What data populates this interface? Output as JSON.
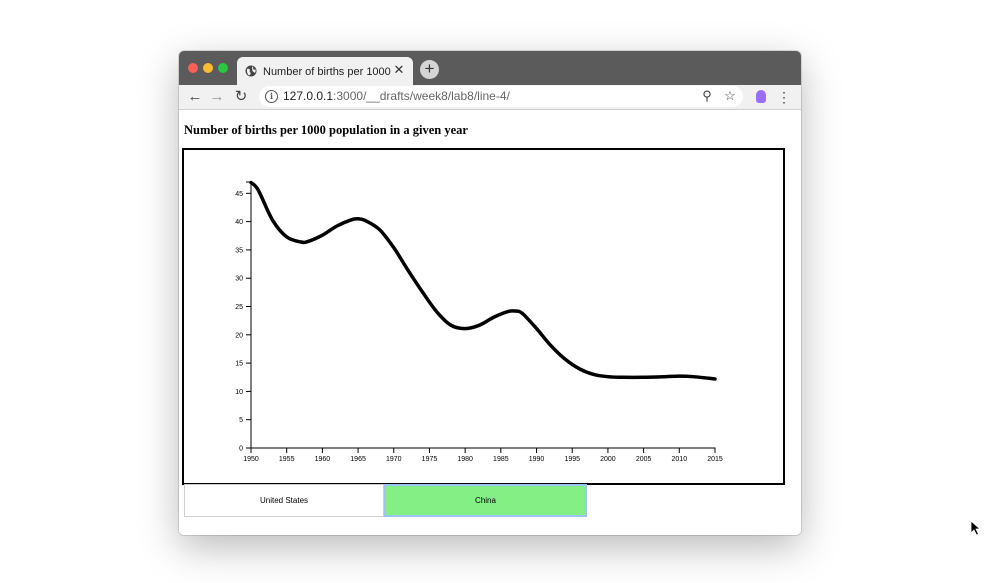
{
  "browser": {
    "tab_title": "Number of births per 1000 population in a given year",
    "tab_close": "✕",
    "new_tab": "+",
    "url_host": "127.0.0.1",
    "url_rest": ":3000/__drafts/week8/lab8/line-4/",
    "back": "←",
    "forward": "→",
    "reload": "↻",
    "zoom": "⚲",
    "star": "☆",
    "menu": "⋮"
  },
  "page": {
    "title": "Number of births per 1000 population in a given year"
  },
  "buttons": {
    "us_label": "United States",
    "china_label": "China",
    "selected": "China",
    "selected_color": "#84ef84"
  },
  "chart_data": {
    "type": "line",
    "title": "",
    "xlabel": "",
    "ylabel": "",
    "xlim": [
      1950,
      2015
    ],
    "ylim": [
      0,
      47
    ],
    "x_ticks": [
      1950,
      1955,
      1960,
      1965,
      1970,
      1975,
      1980,
      1985,
      1990,
      1995,
      2000,
      2005,
      2010,
      2015
    ],
    "y_ticks": [
      0,
      5,
      10,
      15,
      20,
      25,
      30,
      35,
      40,
      45
    ],
    "grid": false,
    "series": [
      {
        "color": "#000000",
        "x": [
          1950,
          1951,
          1953,
          1955,
          1957,
          1958,
          1960,
          1962,
          1964,
          1965,
          1966,
          1968,
          1970,
          1972,
          1974,
          1976,
          1978,
          1980,
          1982,
          1984,
          1986,
          1987,
          1988,
          1990,
          1992,
          1994,
          1996,
          1998,
          2000,
          2002,
          2005,
          2008,
          2010,
          2012,
          2015
        ],
        "y": [
          46.9,
          45.6,
          40.3,
          37.3,
          36.4,
          36.5,
          37.6,
          39.2,
          40.3,
          40.5,
          40.2,
          38.6,
          35.4,
          31.4,
          27.6,
          24.1,
          21.7,
          21.1,
          21.7,
          23.1,
          24.1,
          24.2,
          23.8,
          21.1,
          18.1,
          15.7,
          14.0,
          13.0,
          12.6,
          12.5,
          12.5,
          12.6,
          12.7,
          12.6,
          12.2
        ]
      }
    ]
  }
}
